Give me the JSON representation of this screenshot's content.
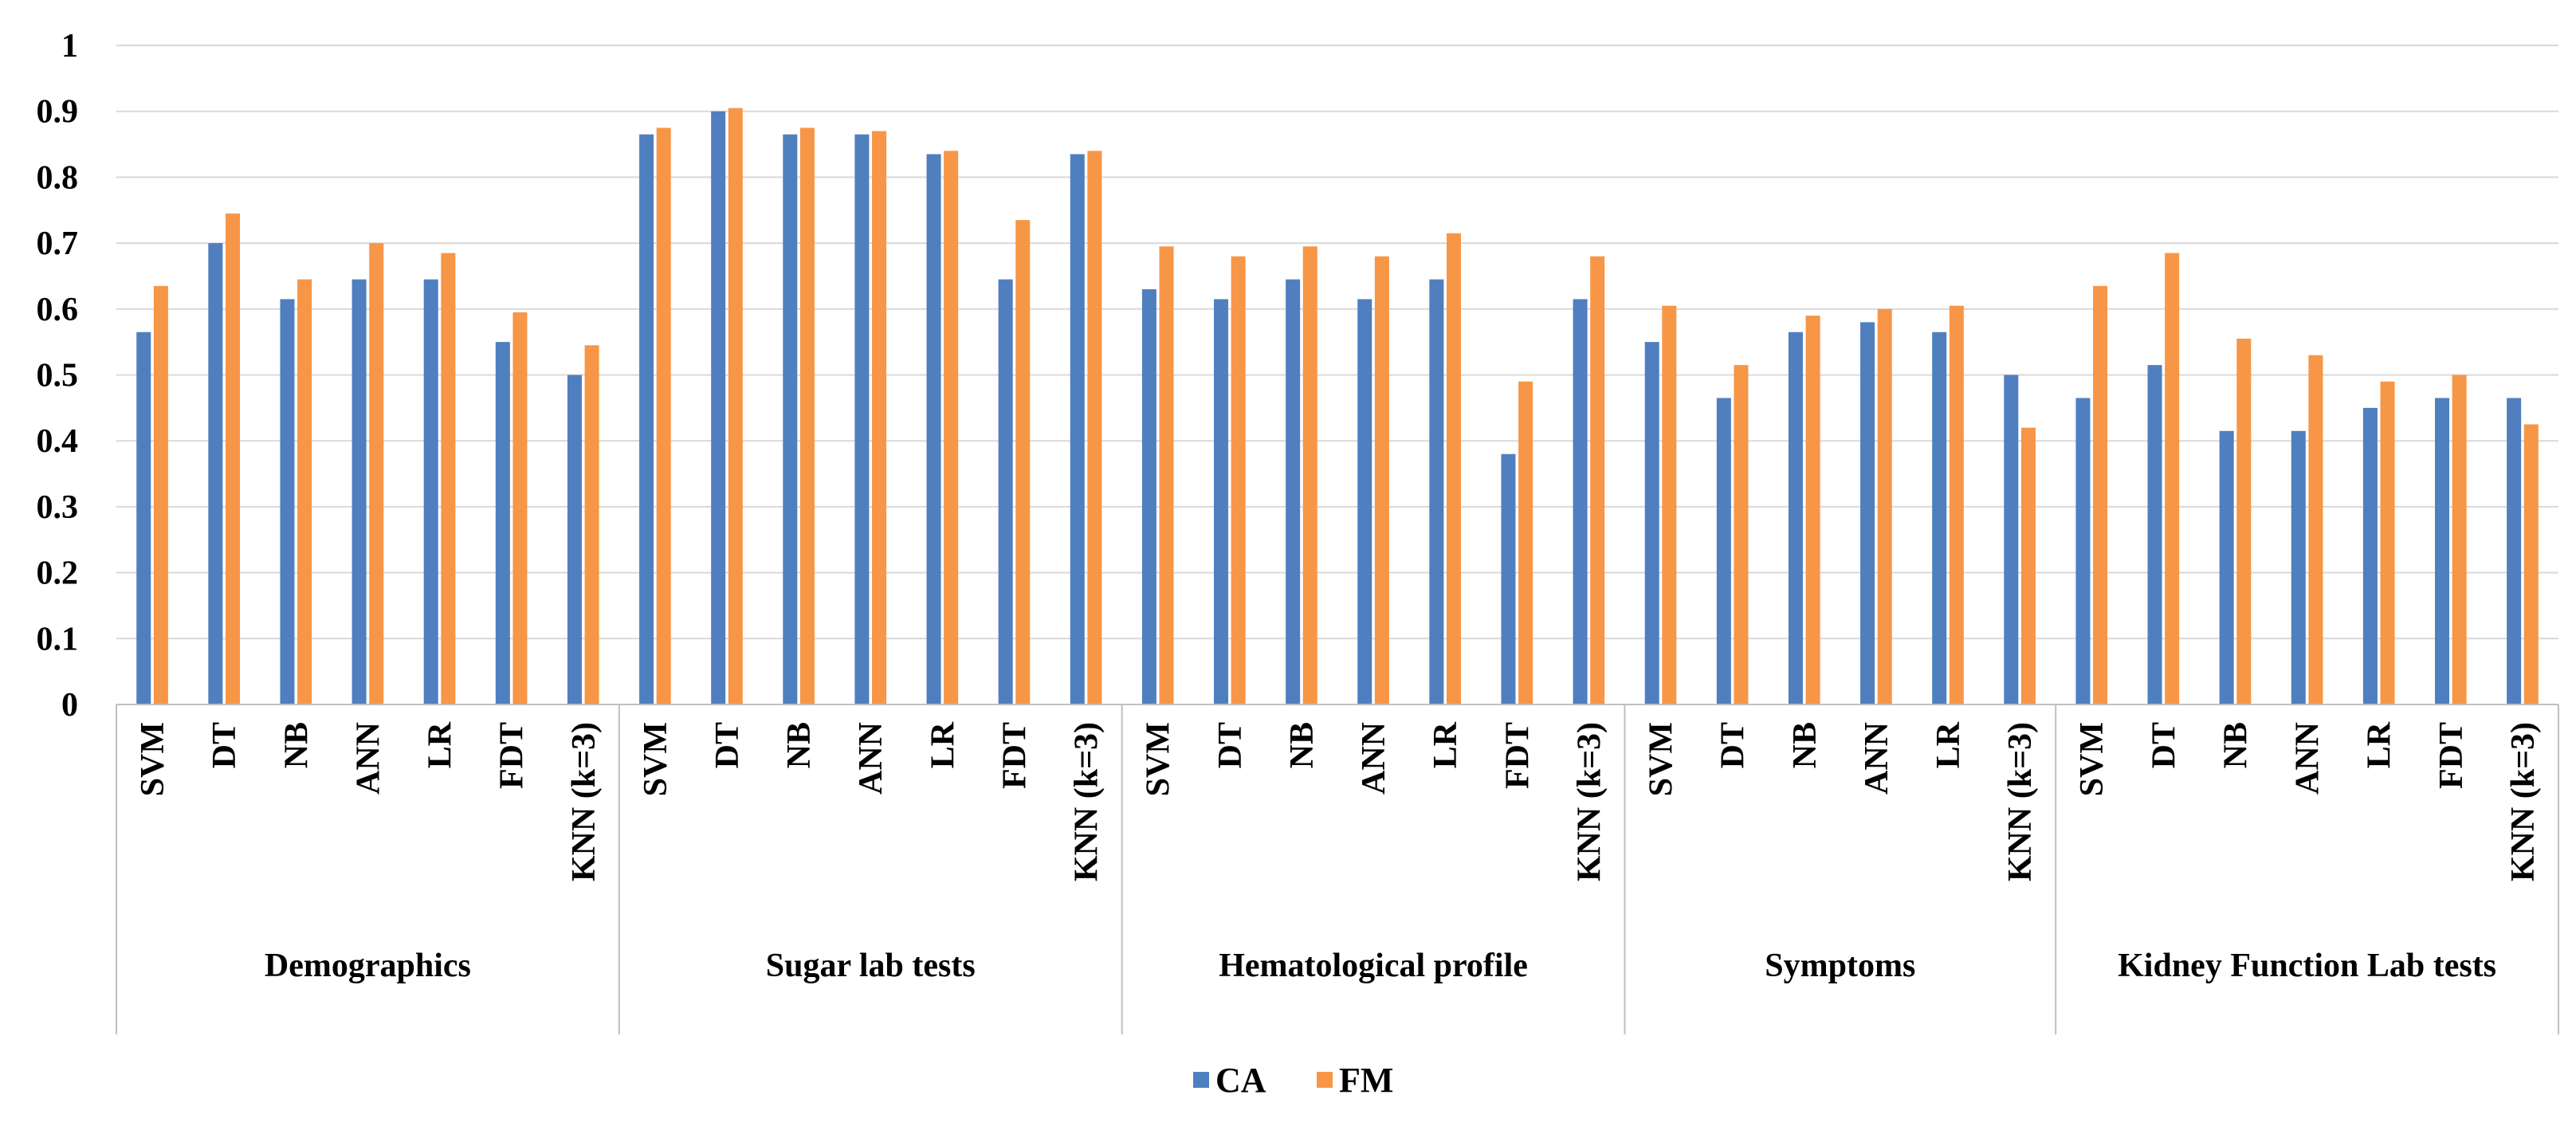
{
  "chart_data": {
    "type": "bar",
    "title": "",
    "xlabel": "",
    "ylabel": "",
    "ylim": [
      0,
      1
    ],
    "yticks": [
      "0",
      "0.1",
      "0.2",
      "0.3",
      "0.4",
      "0.5",
      "0.6",
      "0.7",
      "0.8",
      "0.9",
      "1"
    ],
    "grid": true,
    "legend_position": "bottom",
    "colors": {
      "CA": "#4f7fbf",
      "FM": "#f79646"
    },
    "groups": [
      {
        "name": "Demographics",
        "categories": [
          "SVM",
          "DT",
          "NB",
          "ANN",
          "LR",
          "FDT",
          "KNN (k=3)"
        ],
        "series": [
          {
            "name": "CA",
            "values": [
              0.565,
              0.7,
              0.615,
              0.645,
              0.645,
              0.55,
              0.5
            ]
          },
          {
            "name": "FM",
            "values": [
              0.635,
              0.745,
              0.645,
              0.7,
              0.685,
              0.595,
              0.545
            ]
          }
        ]
      },
      {
        "name": "Sugar lab tests",
        "categories": [
          "SVM",
          "DT",
          "NB",
          "ANN",
          "LR",
          "FDT",
          "KNN (k=3)"
        ],
        "series": [
          {
            "name": "CA",
            "values": [
              0.865,
              0.9,
              0.865,
              0.865,
              0.835,
              0.645,
              0.835
            ]
          },
          {
            "name": "FM",
            "values": [
              0.875,
              0.905,
              0.875,
              0.87,
              0.84,
              0.735,
              0.84
            ]
          }
        ]
      },
      {
        "name": "Hematological profile",
        "categories": [
          "SVM",
          "DT",
          "NB",
          "ANN",
          "LR",
          "FDT",
          "KNN (k=3)"
        ],
        "series": [
          {
            "name": "CA",
            "values": [
              0.63,
              0.615,
              0.645,
              0.615,
              0.645,
              0.38,
              0.615
            ]
          },
          {
            "name": "FM",
            "values": [
              0.695,
              0.68,
              0.695,
              0.68,
              0.715,
              0.49,
              0.68
            ]
          }
        ]
      },
      {
        "name": "Symptoms",
        "categories": [
          "SVM",
          "DT",
          "NB",
          "ANN",
          "LR",
          "KNN (k=3)"
        ],
        "series": [
          {
            "name": "CA",
            "values": [
              0.55,
              0.465,
              0.565,
              0.58,
              0.565,
              0.5
            ]
          },
          {
            "name": "FM",
            "values": [
              0.605,
              0.515,
              0.59,
              0.6,
              0.605,
              0.42
            ]
          }
        ]
      },
      {
        "name": "Kidney Function Lab tests",
        "categories": [
          "SVM",
          "DT",
          "NB",
          "ANN",
          "LR",
          "FDT",
          "KNN (k=3)"
        ],
        "series": [
          {
            "name": "CA",
            "values": [
              0.465,
              0.515,
              0.415,
              0.415,
              0.45,
              0.465,
              0.465
            ]
          },
          {
            "name": "FM",
            "values": [
              0.635,
              0.685,
              0.555,
              0.53,
              0.49,
              0.5,
              0.425
            ]
          }
        ]
      }
    ],
    "legend": [
      "CA",
      "FM"
    ]
  }
}
